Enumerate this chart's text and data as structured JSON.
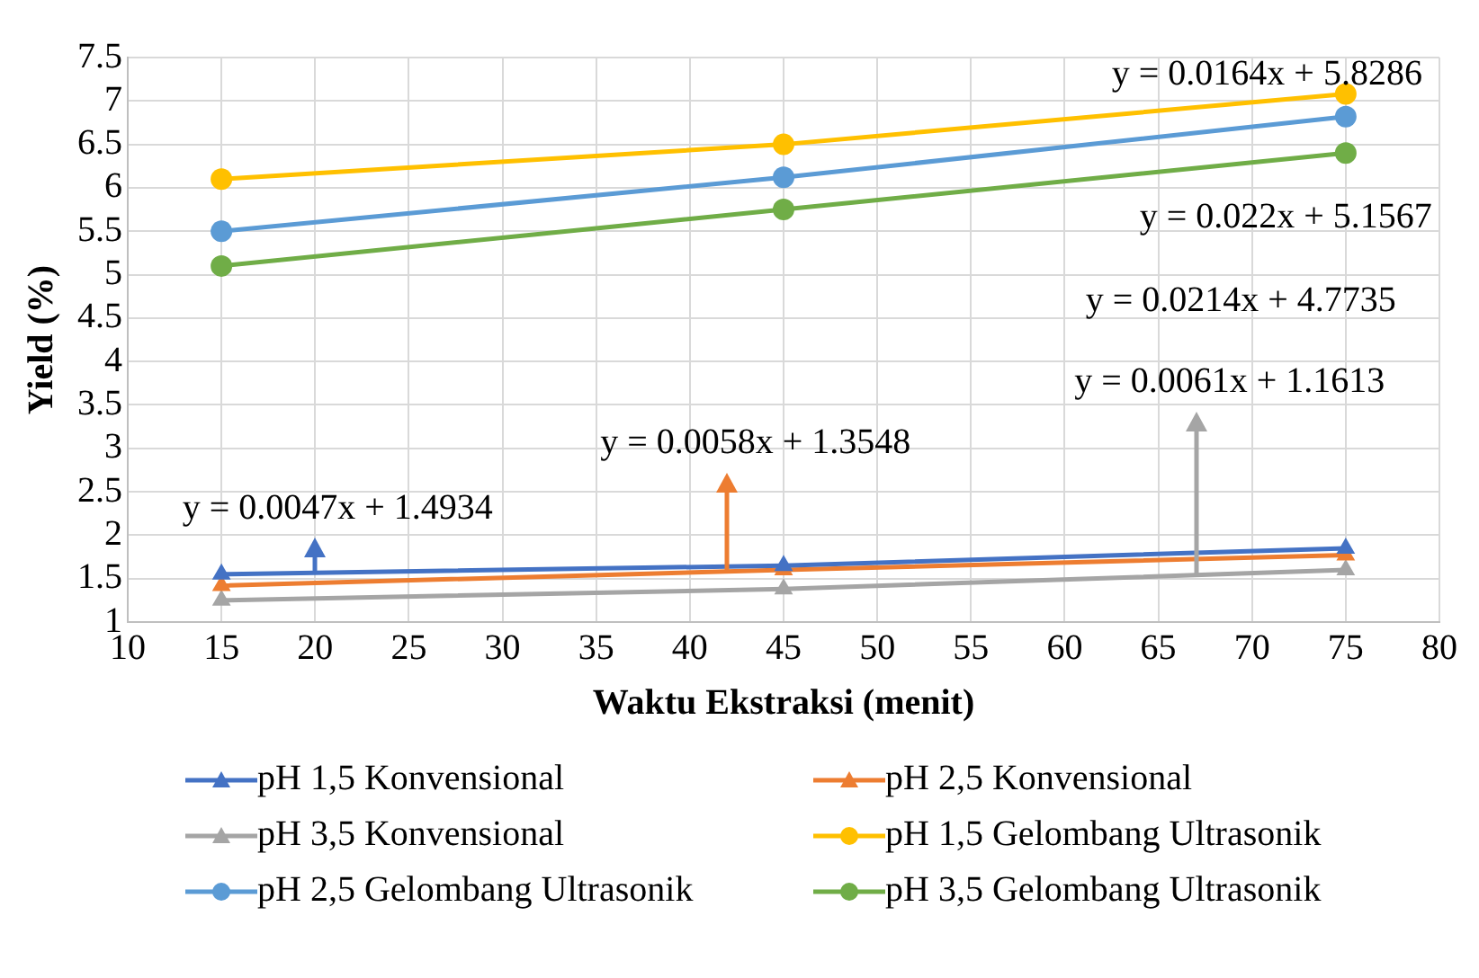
{
  "chart_data": {
    "type": "line",
    "xlabel": "Waktu Ekstraksi (menit)",
    "ylabel": "Yield (%)",
    "x": [
      15,
      45,
      75
    ],
    "series": [
      {
        "name": "pH 1,5 Konvensional",
        "color": "#4472c4",
        "marker": "triangle",
        "values": [
          1.55,
          1.65,
          1.85
        ]
      },
      {
        "name": "pH 2,5 Konvensional",
        "color": "#ed7d31",
        "marker": "triangle",
        "values": [
          1.42,
          1.6,
          1.77
        ]
      },
      {
        "name": "pH 3,5 Konvensional",
        "color": "#a5a5a5",
        "marker": "triangle",
        "values": [
          1.25,
          1.38,
          1.6
        ]
      },
      {
        "name": "pH 1,5 Gelombang Ultrasonik",
        "color": "#ffc000",
        "marker": "circle",
        "values": [
          6.1,
          6.5,
          7.08
        ]
      },
      {
        "name": "pH 2,5 Gelombang Ultrasonik",
        "color": "#5b9bd5",
        "marker": "circle",
        "values": [
          5.5,
          6.12,
          6.82
        ]
      },
      {
        "name": "pH 3,5 Gelombang Ultrasonik",
        "color": "#70ad47",
        "marker": "circle",
        "values": [
          5.1,
          5.75,
          6.4
        ]
      }
    ],
    "xlim": [
      10,
      80
    ],
    "xticks": [
      10,
      15,
      20,
      25,
      30,
      35,
      40,
      45,
      50,
      55,
      60,
      65,
      70,
      75,
      80
    ],
    "ylim": [
      1,
      7.5
    ],
    "yticks": [
      1,
      1.5,
      2,
      2.5,
      3,
      3.5,
      4,
      4.5,
      5,
      5.5,
      6,
      6.5,
      7,
      7.5
    ],
    "grid": true,
    "legend": "bottom",
    "line_style": "solid",
    "annotations": [
      "y = 0.0164x + 5.8286",
      "y = 0.022x + 5.1567",
      "y = 0.0214x + 4.7735",
      {
        "text": "y = 0.0061x + 1.1613",
        "x": 67,
        "y": 1.55
      },
      {
        "text": "y = 0.0058x + 1.3548",
        "x": 42,
        "y": 1.6
      },
      {
        "text": "y = 0.0047x + 1.4934",
        "x": 20,
        "y": 1.57
      }
    ]
  }
}
